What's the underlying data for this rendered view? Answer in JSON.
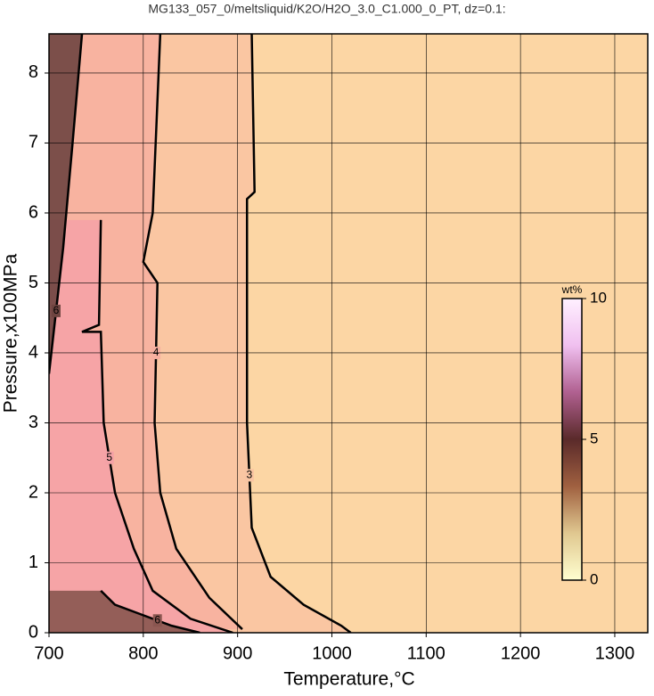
{
  "chart_data": {
    "type": "contour",
    "title": "MG133_057_0/meltsliquid/K2O/H2O_3.0_C1.000_0_PT, dz=0.1:",
    "x_label": "Temperature,°C",
    "y_label": "Pressure,x100MPa",
    "xlim": [
      700,
      1335
    ],
    "ylim": [
      0,
      8.56
    ],
    "xticks": [
      700,
      800,
      900,
      1000,
      1100,
      1200,
      1300
    ],
    "yticks": [
      0,
      1,
      2,
      3,
      4,
      5,
      6,
      7,
      8
    ],
    "grid": true,
    "background": "#fcd6a4",
    "contours": [
      {
        "level": 3,
        "color": "#f9c4a2",
        "x": [
          915,
          918,
          910,
          910,
          915,
          935,
          970,
          1010,
          1020
        ],
        "y": [
          8.56,
          6.3,
          6.2,
          3,
          1.5,
          0.8,
          0.4,
          0.1,
          0
        ]
      },
      {
        "level": 4,
        "color": "#f7b0a0",
        "x": [
          818,
          810,
          800,
          815,
          812,
          818,
          835,
          870,
          905
        ],
        "y": [
          8.56,
          6,
          5.3,
          5.0,
          3,
          2,
          1.2,
          0.5,
          0.05
        ]
      },
      {
        "level": 5,
        "color": "#f5a2a6",
        "x": [
          755,
          753,
          735,
          755,
          758,
          770,
          790,
          810,
          850,
          895
        ],
        "y": [
          5.9,
          4.4,
          4.3,
          4.3,
          3,
          2,
          1.2,
          0.6,
          0.2,
          0
        ]
      },
      {
        "level": 6,
        "color": "#8a5650",
        "x": [
          755,
          770,
          800,
          830,
          860
        ],
        "y": [
          0.6,
          0.4,
          0.25,
          0.1,
          0
        ]
      },
      {
        "level": 6,
        "color": "#6e4440",
        "x": [
          735,
          725,
          715,
          700
        ],
        "y": [
          8.56,
          7,
          5.5,
          3.7
        ]
      }
    ],
    "colorbar": {
      "label": "wt%",
      "lim": [
        0,
        10
      ],
      "ticks": [
        0,
        5,
        10
      ],
      "colors": [
        "#ffffd0",
        "#e0c890",
        "#a06040",
        "#5a2a2a",
        "#b06090",
        "#f0c0f0",
        "#fff0ff"
      ]
    }
  }
}
